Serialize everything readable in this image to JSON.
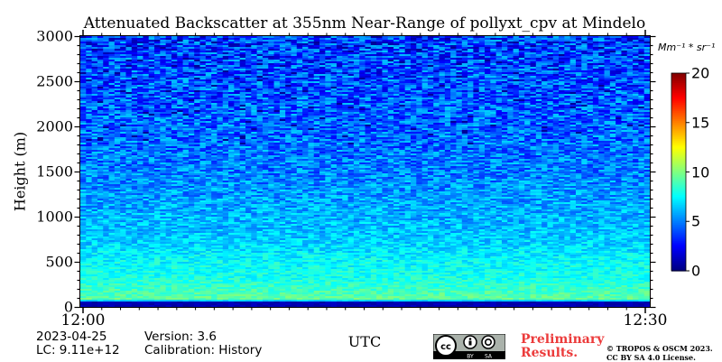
{
  "chart_data": {
    "type": "heatmap",
    "title": "Attenuated Backscatter at 355nm Near-Range of pollyxt_cpv at Mindelo",
    "xlabel": "UTC",
    "ylabel": "Height (m)",
    "x_tick_labels": [
      "12:00",
      "12:30"
    ],
    "x_range": [
      "12:00",
      "12:30"
    ],
    "y_ticks": [
      0,
      500,
      1000,
      1500,
      2000,
      2500,
      3000
    ],
    "ylim": [
      0,
      3000
    ],
    "colorbar": {
      "unit": "Mm⁻¹ * sr⁻¹",
      "ticks": [
        0,
        5,
        10,
        15,
        20
      ],
      "range": [
        0,
        20
      ],
      "colormap": "jet"
    },
    "profile": {
      "height_m": [
        0,
        50,
        80,
        150,
        300,
        500,
        750,
        1000,
        1500,
        2000,
        2500,
        3000
      ],
      "typical_value": [
        1,
        1,
        9.5,
        9,
        8,
        7.5,
        6.5,
        6,
        5,
        4.5,
        4,
        3.5
      ]
    }
  },
  "info": {
    "date": "2023-04-25",
    "lc": "LC: 9.11e+12",
    "version": "Version: 3.6",
    "calibration": "Calibration: History",
    "preliminary_line1": "Preliminary",
    "preliminary_line2": "Results.",
    "license_line1": "© TROPOS & OSCM 2023.",
    "license_line2": "CC BY SA 4.0 License.",
    "cc_labels": [
      "cc",
      "BY",
      "SA"
    ]
  },
  "colors": {
    "colormap": [
      "#00007f",
      "#0000ff",
      "#007fff",
      "#00ffff",
      "#7fff7f",
      "#ffff00",
      "#ff7f00",
      "#ff0000",
      "#7f0000"
    ],
    "preliminary": "#ec3b3b"
  }
}
